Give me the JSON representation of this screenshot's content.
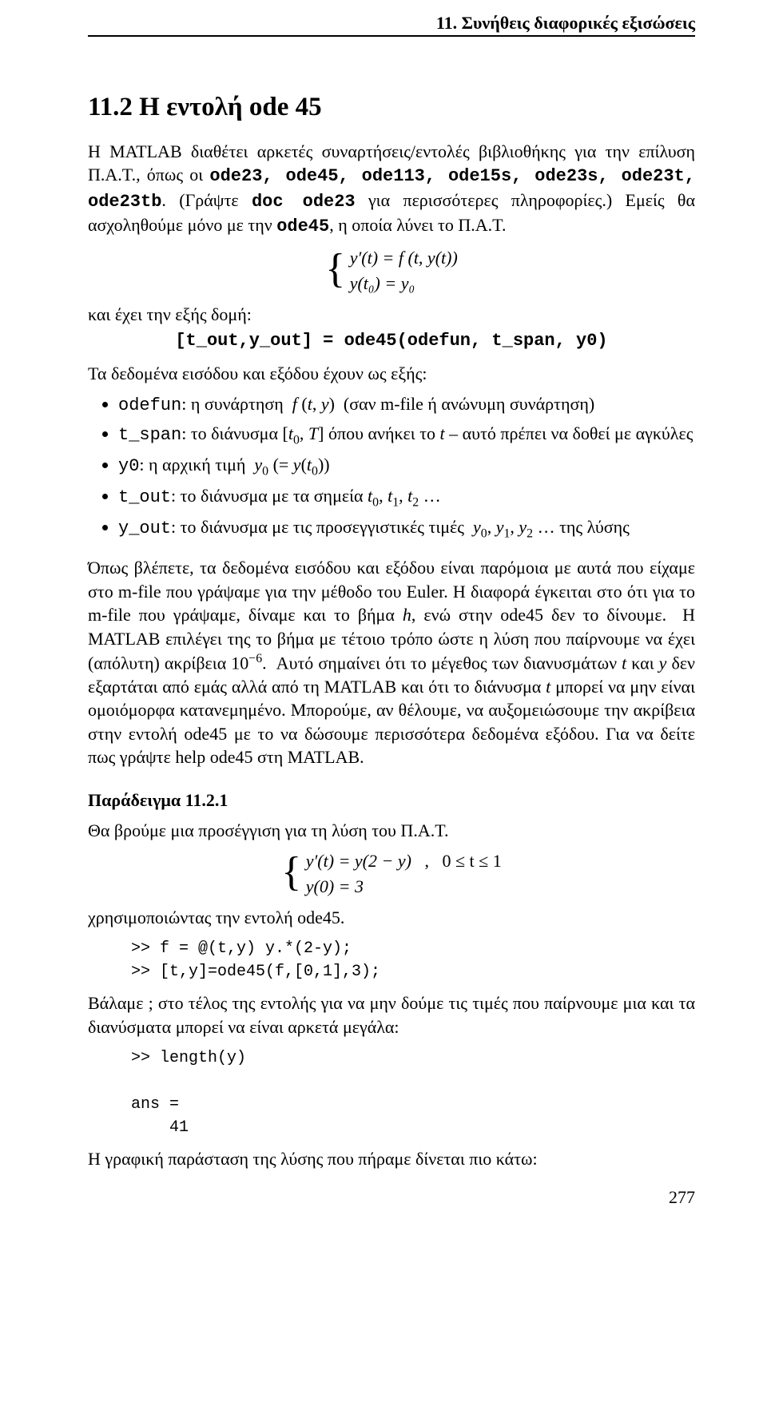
{
  "runningHead": "11. Συνήθεις διαφορικές εξισώσεις",
  "sectionTitle": "11.2  Η εντολή ode 45",
  "para1_a": "Η MATLAB διαθέτει αρκετές συναρτήσεις/εντολές βιβλιοθήκης για την επίλυση Π.Α.Τ., όπως οι ",
  "cmds1": "ode23, ode45, ode113, ode15s, ode23s, ode23t, ode23tb",
  "para1_b": ". (Γράψτε ",
  "cmds2": "doc ode23",
  "para1_c": " για περισσότερες πληροφορίες.)  Εμείς θα ασχοληθούμε μόνο με την ",
  "cmds3": "ode45",
  "para1_d": ", η οποία λύνει το Π.Α.Τ.",
  "eq1_line1": "y′(t) = f (t, y(t))",
  "eq1_line2": "y(t₀) = y₀",
  "para2": "και έχει την εξής δομή:",
  "syntax": "[t_out,y_out] = ode45(odefun, t_span, y0)",
  "para3": "Τα δεδομένα εισόδου και εξόδου έχουν ως εξής:",
  "bul1": "odefun: η συνάρτηση  f (t, y)  (σαν m-file ή ανώνυμη συνάρτηση)",
  "bul2": "t_span: το διάνυσμα [t₀, T] όπου ανήκει το t – αυτό πρέπει να δοθεί με αγκύλες",
  "bul3": "y0: η αρχική τιμή  y₀ (= y(t₀))",
  "bul4": "t_out: το διάνυσμα με τα σημεία t₀, t₁, t₂ …",
  "bul5": "y_out: το διάνυσμα με τις προσεγγιστικές τιμές  y₀, y₁, y₂ … της λύσης",
  "para4": "Όπως βλέπετε, τα δεδομένα εισόδου και εξόδου είναι παρόμοια με αυτά που είχαμε στο m-file που γράψαμε για την μέθοδο του Euler. Η διαφορά έγκειται στο ότι για το m-file που γράψαμε, δίναμε και το βήμα h, ενώ στην ode45 δεν το δίνουμε.  Η MATLAB επιλέγει της το βήμα με τέτοιο τρόπο ώστε η λύση που παίρνουμε να έχει (απόλυτη) ακρίβεια 10⁻⁶.  Αυτό σημαίνει ότι το μέγεθος των διανυσμάτων t και y δεν εξαρτάται από εμάς αλλά από τη MATLAB και ότι το διάνυσμα t μπορεί να μην είναι ομοιόμορφα κατανεμημένο. Μπορούμε, αν θέλουμε, να αυξομειώσουμε την ακρίβεια στην εντολή ode45 με το να δώσουμε περισσότερα δεδομένα εξόδου. Για να δείτε πως γράψτε help ode45 στη MATLAB.",
  "exTitle": "Παράδειγμα 11.2.1",
  "para5": "Θα βρούμε μια προσέγγιση για τη λύση του Π.Α.Τ.",
  "eq2_line1a": "y′(t) = y(2 − y)",
  "eq2_line1b": "0 ≤ t ≤ 1",
  "eq2_line2": "y(0) = 3",
  "para6": "χρησιμοποιώντας την εντολή ode45.",
  "code1": ">> f = @(t,y) y.*(2-y);\n>> [t,y]=ode45(f,[0,1],3);",
  "para7": "Βάλαμε  ;  στο τέλος της εντολής για να μην δούμε τις τιμές που παίρνουμε μια και τα διανύσματα μπορεί να είναι αρκετά μεγάλα:",
  "code2": ">> length(y)\n\nans =\n    41",
  "para8": "Η γραφική παράσταση της λύσης που πήραμε δίνεται πιο κάτω:",
  "pageNum": "277"
}
